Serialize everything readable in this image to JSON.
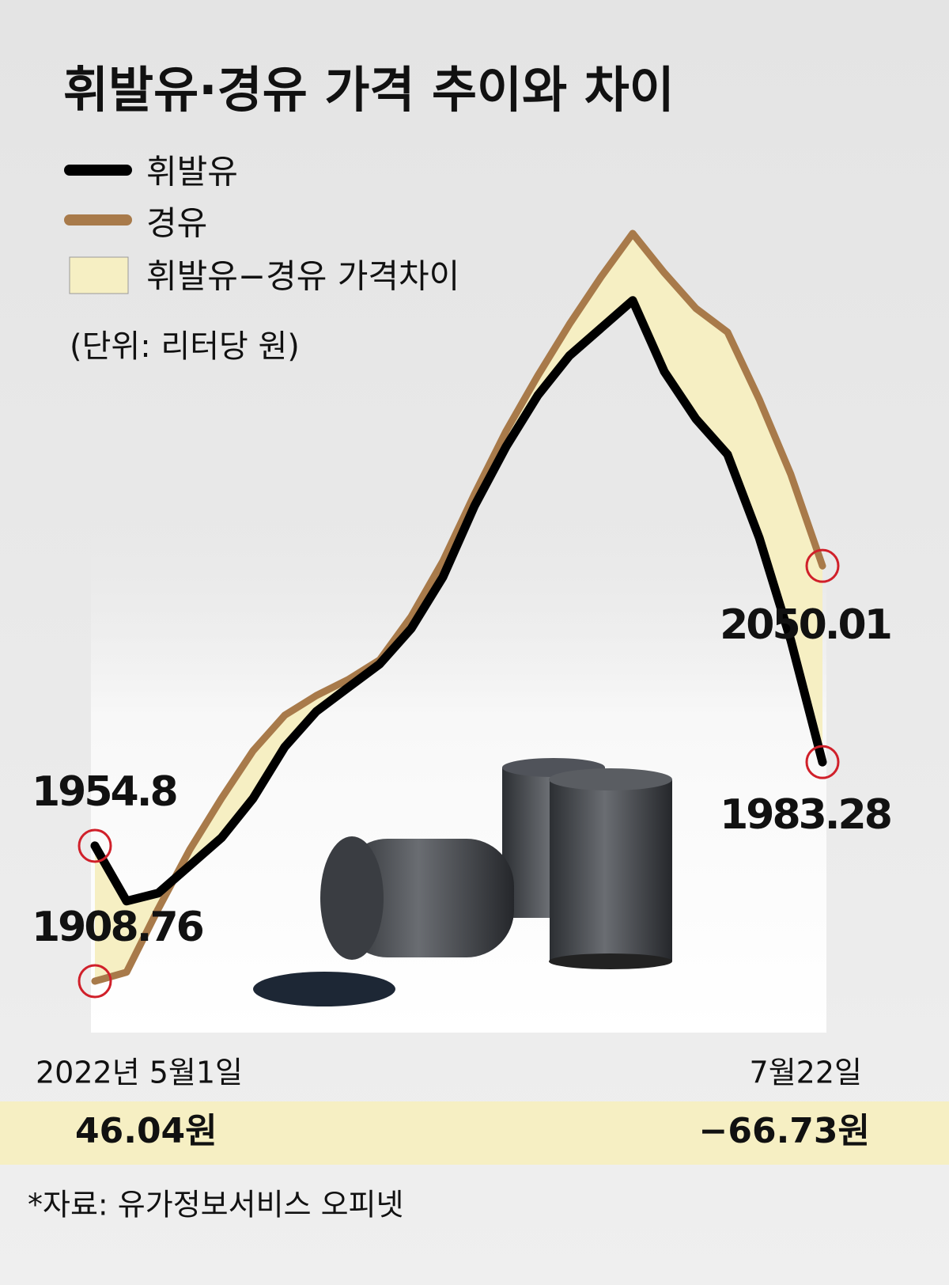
{
  "chart_data": {
    "type": "line",
    "title": "휘발유·경유 가격 추이와 차이",
    "unit_note": "(단위: 리터당 원)",
    "gap_legend": "휘발유−경유 가격차이",
    "gap_color": "#f6efc3",
    "gap_labels": [
      "46.04원",
      "−66.73원"
    ],
    "source": "*자료: 유가정보서비스 오피넷",
    "categories": [
      "2022년 5월1일",
      null,
      null,
      null,
      null,
      null,
      null,
      null,
      null,
      null,
      null,
      null,
      null,
      null,
      null,
      null,
      null,
      null,
      null,
      null,
      null,
      null,
      null,
      "7월22일"
    ],
    "series": [
      {
        "name": "휘발유",
        "color": "#000000",
        "values": [
          1954.8,
          1936.0,
          1938.7,
          1948.1,
          1957.5,
          1970.9,
          1988.4,
          2000.5,
          2008.6,
          2016.6,
          2028.7,
          2046.2,
          2070.4,
          2090.6,
          2108.0,
          2121.5,
          2130.9,
          2140.3,
          2116.1,
          2100.0,
          2087.9,
          2059.6,
          2024.7,
          1983.28
        ]
      },
      {
        "name": "경유",
        "color": "#a87a4a",
        "values": [
          1908.76,
          1911.8,
          1933.3,
          1953.5,
          1970.9,
          1987.1,
          1999.2,
          2005.9,
          2011.3,
          2018.0,
          2032.8,
          2051.6,
          2074.4,
          2095.9,
          2114.7,
          2132.2,
          2148.3,
          2163.1,
          2149.7,
          2137.6,
          2129.5,
          2106.7,
          2081.1,
          2050.01
        ]
      }
    ]
  }
}
